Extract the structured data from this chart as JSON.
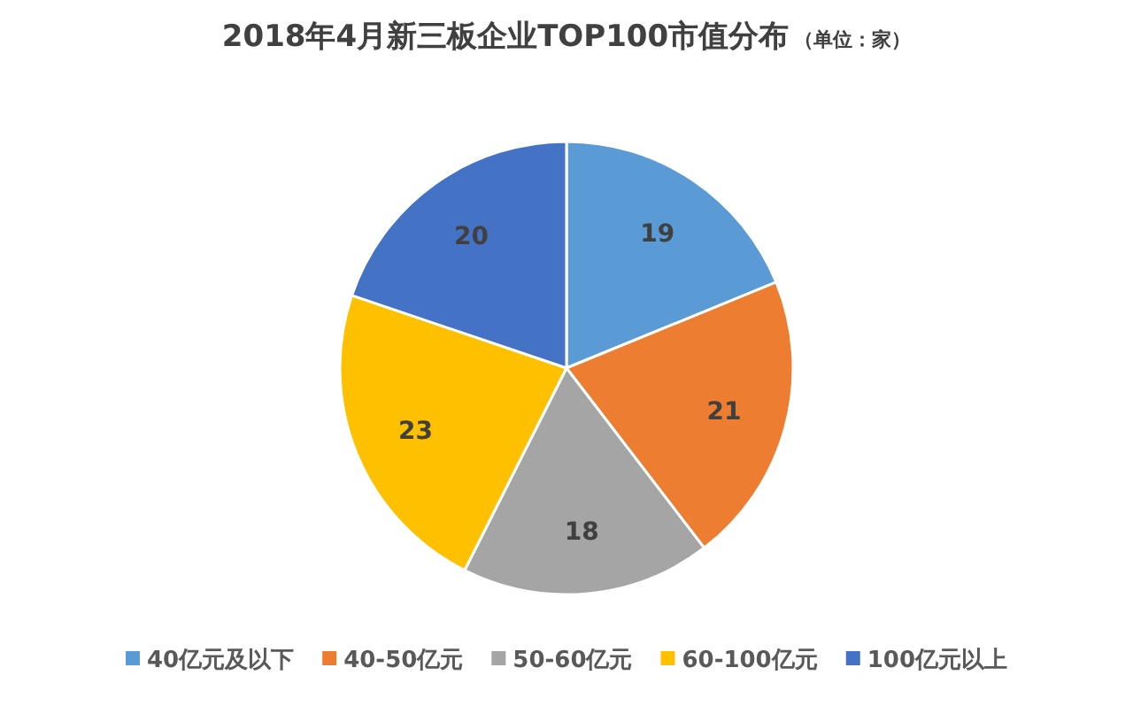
{
  "chart_data": {
    "type": "pie",
    "title": "2018年4月新三板企业TOP100市值分布",
    "subtitle": "（单位：家）",
    "categories": [
      "40亿元及以下",
      "40-50亿元",
      "50-60亿元",
      "60-100亿元",
      "100亿元以上"
    ],
    "values": [
      19,
      21,
      18,
      23,
      20
    ],
    "colors": [
      "#5b9bd5",
      "#ed7d31",
      "#a5a5a5",
      "#ffc000",
      "#4472c4"
    ],
    "data_labels": true,
    "legend": "bottom"
  }
}
